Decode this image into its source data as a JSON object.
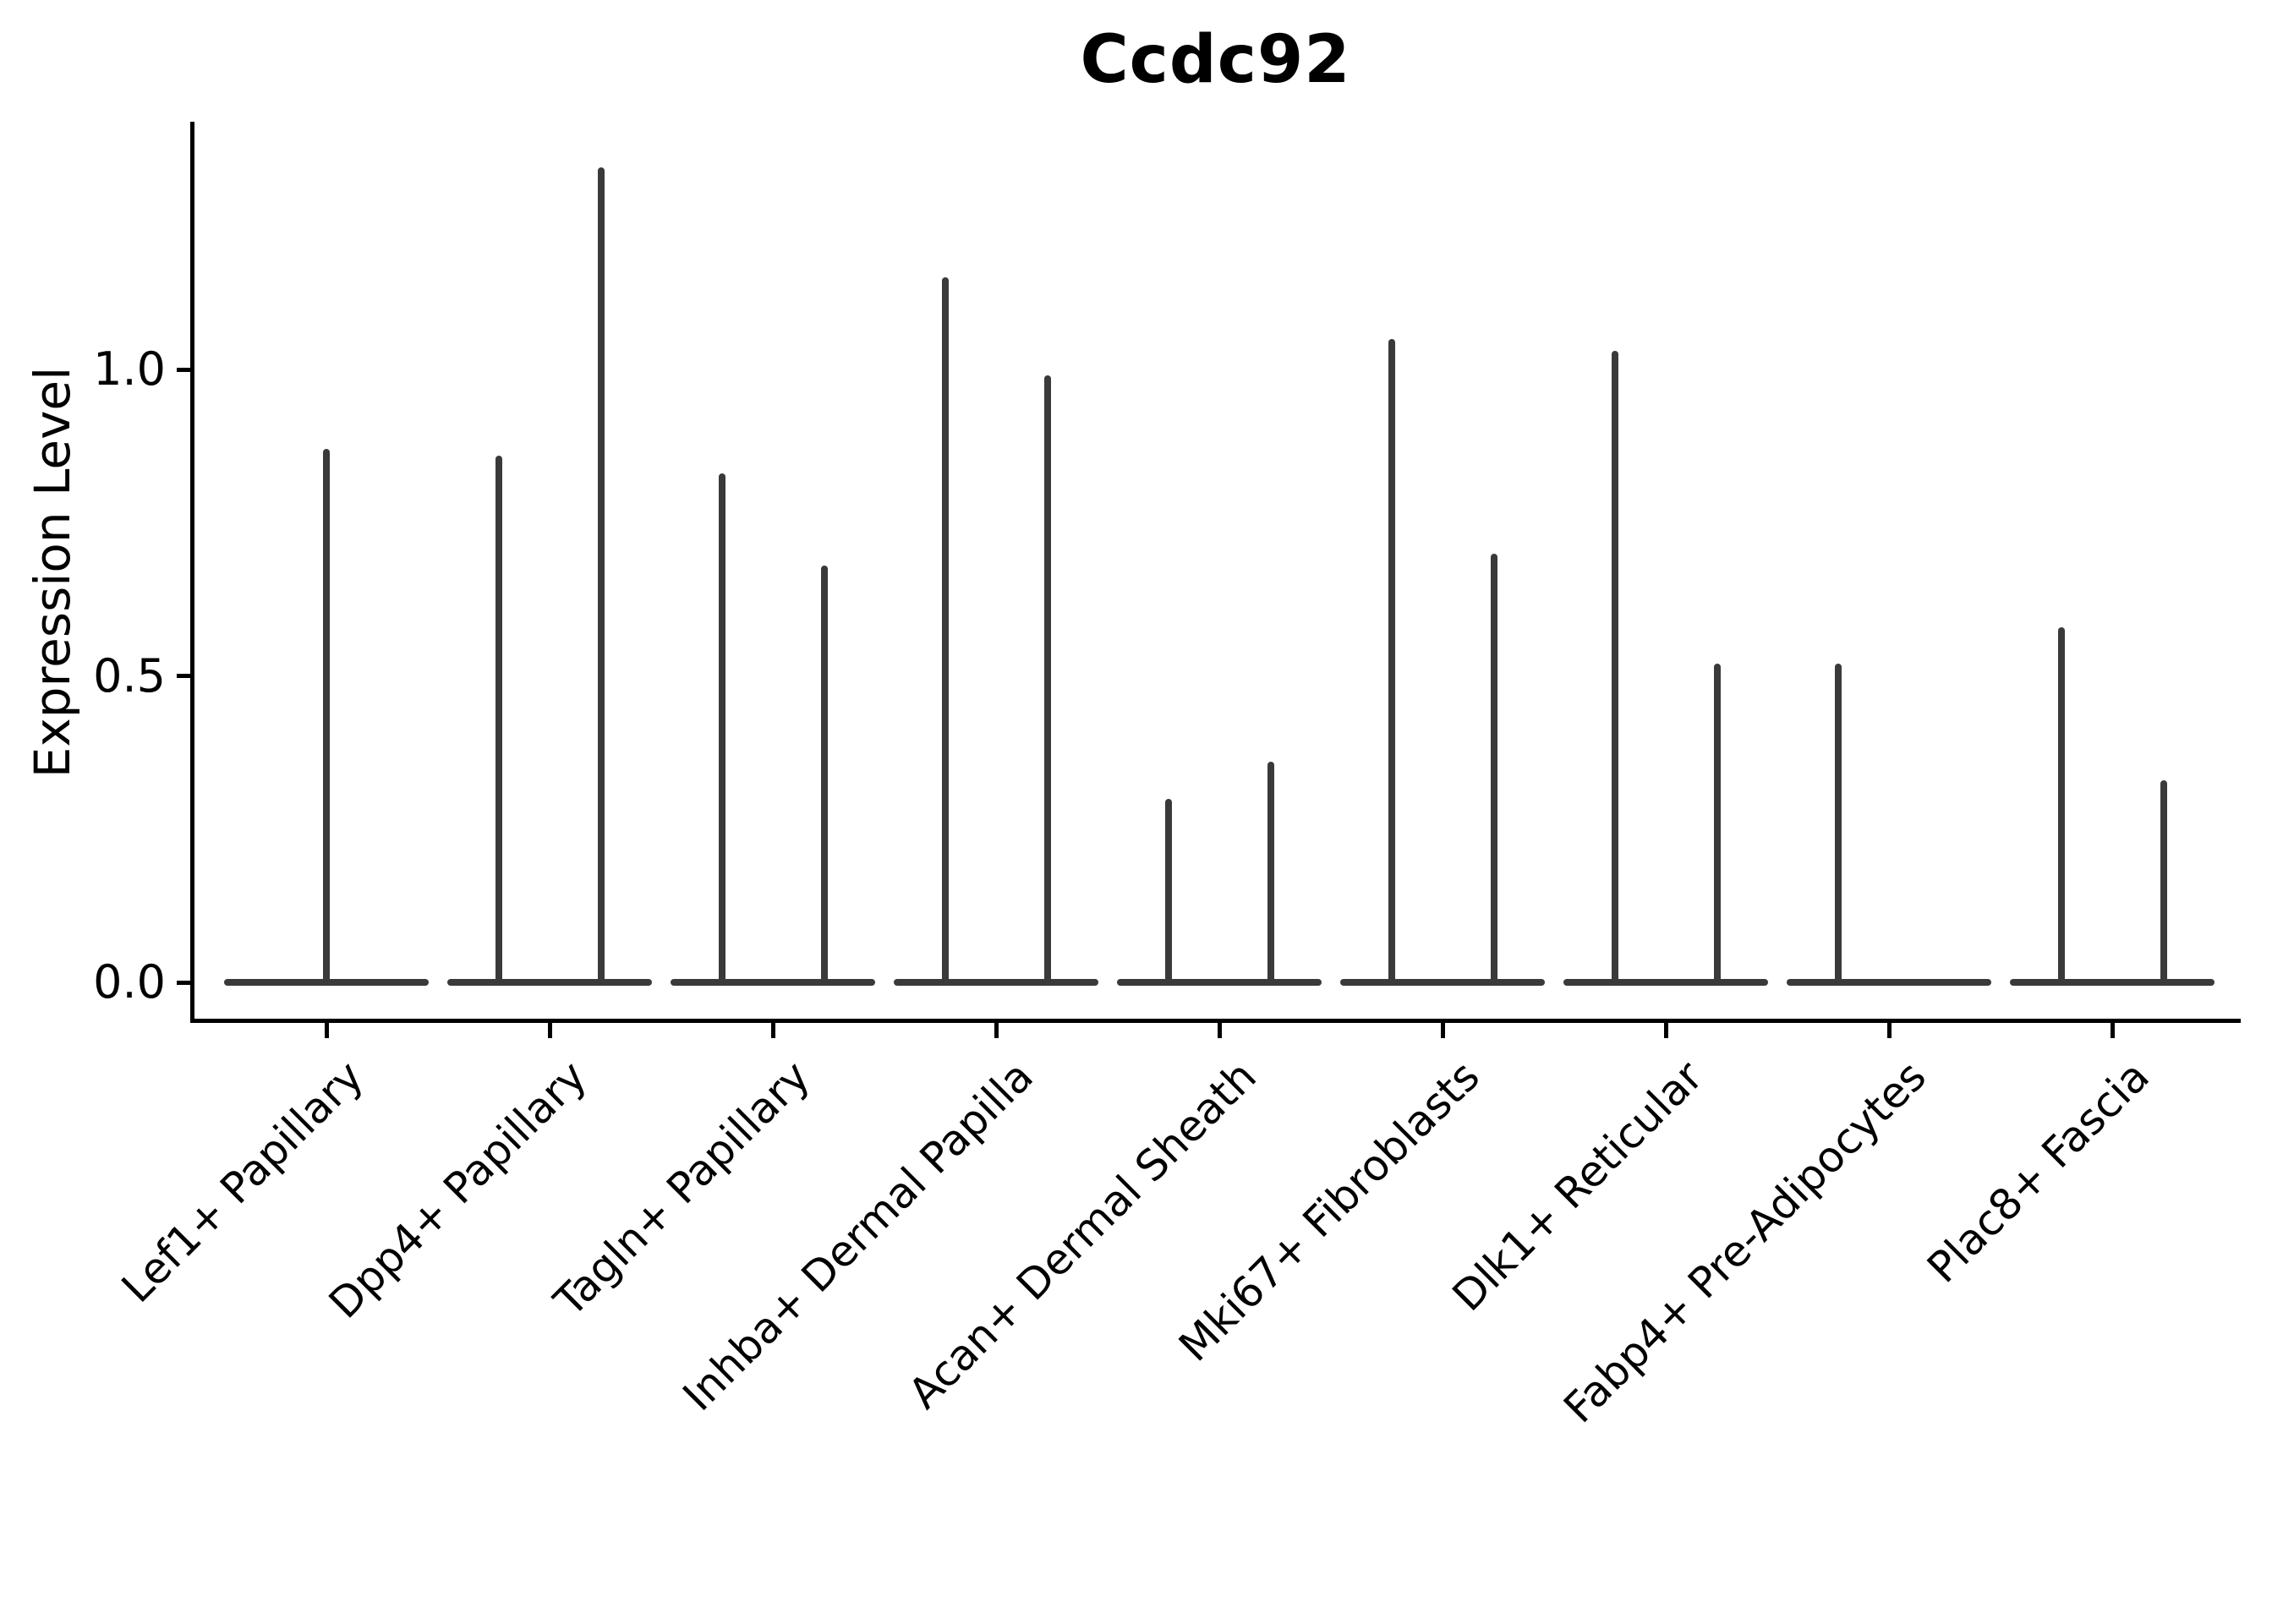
{
  "figure": {
    "title": "Ccdc92",
    "y_axis_label": "Expression Level"
  },
  "colors": {
    "violin": "#3a3a3a",
    "axis": "#000000",
    "text": "#000000",
    "background": "#ffffff"
  },
  "chart_data": {
    "type": "violin",
    "title": "Ccdc92",
    "xlabel": "",
    "ylabel": "Expression Level",
    "ylim": [
      0,
      1.4
    ],
    "grid": false,
    "legend_position": "none",
    "x_tick_rotation_deg": 45,
    "y_ticks": [
      {
        "value": 0.0,
        "label": "0.0"
      },
      {
        "value": 0.5,
        "label": "0.5"
      },
      {
        "value": 1.0,
        "label": "1.0"
      }
    ],
    "categories": [
      "Lef1+ Papillary",
      "Dpp4+ Papillary",
      "Tagln+ Papillary",
      "Inhba+ Dermal Papilla",
      "Acan+ Dermal Sheath",
      "Mki67+ Fibroblasts",
      "Dlk1+ Reticular",
      "Fabp4+ Pre-Adipocytes",
      "Plac8+ Fascia"
    ],
    "violins": [
      {
        "category": "Lef1+ Papillary",
        "baseline_value": 0.0,
        "spikes": [
          {
            "slot": "center",
            "max_expression": 0.87
          }
        ]
      },
      {
        "category": "Dpp4+ Papillary",
        "baseline_value": 0.0,
        "spikes": [
          {
            "slot": "left",
            "max_expression": 0.86
          },
          {
            "slot": "right",
            "max_expression": 1.33
          }
        ]
      },
      {
        "category": "Tagln+ Papillary",
        "baseline_value": 0.0,
        "spikes": [
          {
            "slot": "left",
            "max_expression": 0.83
          },
          {
            "slot": "right",
            "max_expression": 0.68
          }
        ]
      },
      {
        "category": "Inhba+ Dermal Papilla",
        "baseline_value": 0.0,
        "spikes": [
          {
            "slot": "left",
            "max_expression": 1.15
          },
          {
            "slot": "right",
            "max_expression": 0.99
          }
        ]
      },
      {
        "category": "Acan+ Dermal Sheath",
        "baseline_value": 0.0,
        "spikes": [
          {
            "slot": "left",
            "max_expression": 0.3
          },
          {
            "slot": "right",
            "max_expression": 0.36
          }
        ]
      },
      {
        "category": "Mki67+ Fibroblasts",
        "baseline_value": 0.0,
        "spikes": [
          {
            "slot": "left",
            "max_expression": 1.05
          },
          {
            "slot": "right",
            "max_expression": 0.7
          }
        ]
      },
      {
        "category": "Dlk1+ Reticular",
        "baseline_value": 0.0,
        "spikes": [
          {
            "slot": "left",
            "max_expression": 1.03
          },
          {
            "slot": "right",
            "max_expression": 0.52
          }
        ]
      },
      {
        "category": "Fabp4+ Pre-Adipocytes",
        "baseline_value": 0.0,
        "spikes": [
          {
            "slot": "left",
            "max_expression": 0.52
          }
        ]
      },
      {
        "category": "Plac8+ Fascia",
        "baseline_value": 0.0,
        "spikes": [
          {
            "slot": "left",
            "max_expression": 0.58
          },
          {
            "slot": "right",
            "max_expression": 0.33
          }
        ]
      }
    ]
  }
}
